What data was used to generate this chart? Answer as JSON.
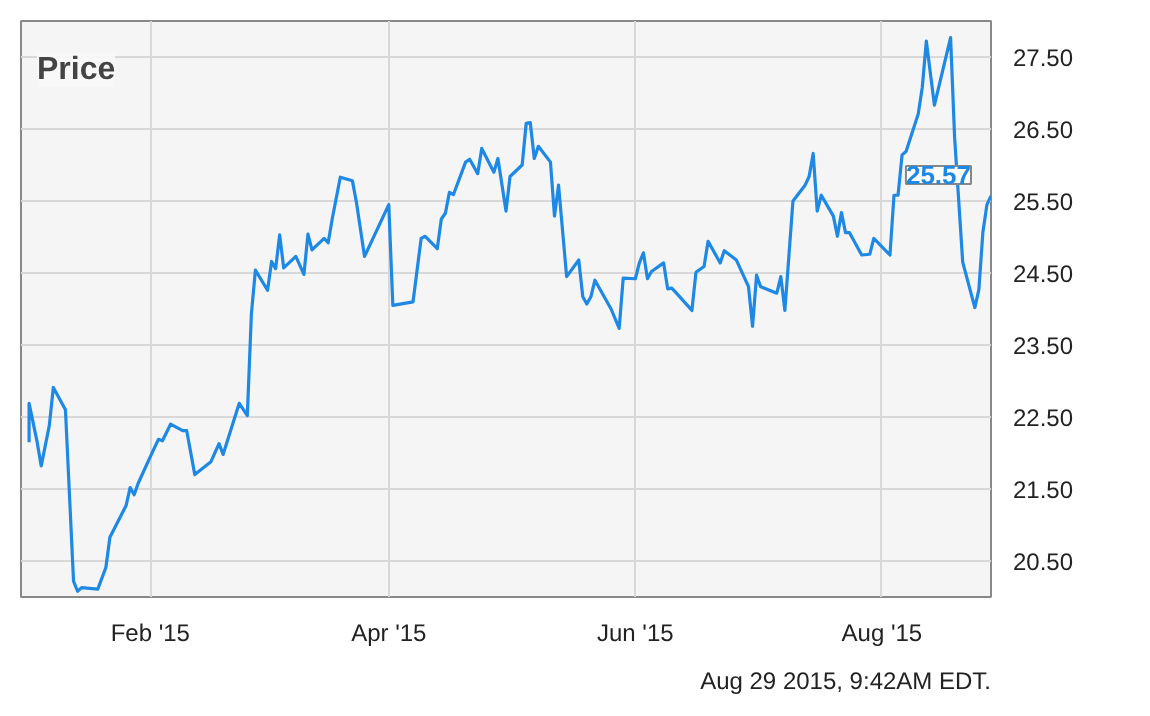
{
  "chart_data": {
    "type": "line",
    "title": "Price",
    "x": [
      "2015-01-02",
      "2015-01-02",
      "2015-01-04",
      "2015-01-05",
      "2015-01-07",
      "2015-01-08",
      "2015-01-11",
      "2015-01-13",
      "2015-01-14",
      "2015-01-15",
      "2015-01-19",
      "2015-01-21",
      "2015-01-22",
      "2015-01-26",
      "2015-01-27",
      "2015-01-28",
      "2015-01-29",
      "2015-02-01",
      "2015-02-03",
      "2015-02-04",
      "2015-02-06",
      "2015-02-09",
      "2015-02-10",
      "2015-02-12",
      "2015-02-16",
      "2015-02-18",
      "2015-02-19",
      "2015-02-23",
      "2015-02-25",
      "2015-02-26",
      "2015-02-27",
      "2015-03-02",
      "2015-03-03",
      "2015-03-04",
      "2015-03-05",
      "2015-03-06",
      "2015-03-09",
      "2015-03-11",
      "2015-03-12",
      "2015-03-13",
      "2015-03-16",
      "2015-03-17",
      "2015-03-18",
      "2015-03-20",
      "2015-03-23",
      "2015-03-24",
      "2015-03-26",
      "2015-04-01",
      "2015-04-02",
      "2015-04-07",
      "2015-04-09",
      "2015-04-10",
      "2015-04-13",
      "2015-04-14",
      "2015-04-15",
      "2015-04-16",
      "2015-04-17",
      "2015-04-20",
      "2015-04-21",
      "2015-04-23",
      "2015-04-24",
      "2015-04-27",
      "2015-04-28",
      "2015-04-30",
      "2015-05-01",
      "2015-05-04",
      "2015-05-05",
      "2015-05-06",
      "2015-05-07",
      "2015-05-08",
      "2015-05-11",
      "2015-05-12",
      "2015-05-13",
      "2015-05-15",
      "2015-05-18",
      "2015-05-19",
      "2015-05-20",
      "2015-05-21",
      "2015-05-22",
      "2015-05-26",
      "2015-05-28",
      "2015-05-29",
      "2015-06-01",
      "2015-06-02",
      "2015-06-03",
      "2015-06-04",
      "2015-06-05",
      "2015-06-08",
      "2015-06-09",
      "2015-06-10",
      "2015-06-11",
      "2015-06-15",
      "2015-06-16",
      "2015-06-18",
      "2015-06-19",
      "2015-06-22",
      "2015-06-23",
      "2015-06-26",
      "2015-06-29",
      "2015-06-30",
      "2015-07-01",
      "2015-07-02",
      "2015-07-06",
      "2015-07-07",
      "2015-07-08",
      "2015-07-10",
      "2015-07-13",
      "2015-07-14",
      "2015-07-15",
      "2015-07-16",
      "2015-07-17",
      "2015-07-20",
      "2015-07-21",
      "2015-07-22",
      "2015-07-23",
      "2015-07-24",
      "2015-07-27",
      "2015-07-29",
      "2015-07-30",
      "2015-08-03",
      "2015-08-04",
      "2015-08-05",
      "2015-08-06",
      "2015-08-07",
      "2015-08-10",
      "2015-08-11",
      "2015-08-12",
      "2015-08-14",
      "2015-08-18",
      "2015-08-19",
      "2015-08-21",
      "2015-08-24",
      "2015-08-25",
      "2015-08-26",
      "2015-08-27",
      "2015-08-28"
    ],
    "series": [
      {
        "color": "#1e88e5",
        "values": [
          22.15,
          22.69,
          22.15,
          21.82,
          22.38,
          22.91,
          22.6,
          20.22,
          20.08,
          20.13,
          20.11,
          20.41,
          20.83,
          21.27,
          21.52,
          21.42,
          21.58,
          21.95,
          22.19,
          22.17,
          22.4,
          22.31,
          22.31,
          21.7,
          21.88,
          22.13,
          21.98,
          22.69,
          22.52,
          23.93,
          24.54,
          24.26,
          24.66,
          24.56,
          25.03,
          24.57,
          24.73,
          24.48,
          25.04,
          24.82,
          24.98,
          24.92,
          25.25,
          25.83,
          25.78,
          25.48,
          24.73,
          25.45,
          24.05,
          24.1,
          24.98,
          25.01,
          24.84,
          25.25,
          25.33,
          25.62,
          25.59,
          26.04,
          26.08,
          25.88,
          26.23,
          25.9,
          26.09,
          25.36,
          25.84,
          26.0,
          26.58,
          26.59,
          26.09,
          26.26,
          26.04,
          25.29,
          25.72,
          24.45,
          24.68,
          24.17,
          24.07,
          24.17,
          24.4,
          24.0,
          23.73,
          24.43,
          24.42,
          24.64,
          24.78,
          24.42,
          24.52,
          24.64,
          24.28,
          24.29,
          24.23,
          23.98,
          24.51,
          24.59,
          24.94,
          24.64,
          24.81,
          24.68,
          24.31,
          23.76,
          24.47,
          24.31,
          24.22,
          24.45,
          23.98,
          25.5,
          25.72,
          25.84,
          26.16,
          25.36,
          25.58,
          25.29,
          25.01,
          25.34,
          25.06,
          25.06,
          24.75,
          24.76,
          24.98,
          24.75,
          25.58,
          25.58,
          26.14,
          26.19,
          26.71,
          27.08,
          27.72,
          26.83,
          27.77,
          26.38,
          24.65,
          24.02,
          24.27,
          25.07,
          25.45,
          25.57
        ]
      }
    ],
    "xlim": [
      "2014-12-31",
      "2015-08-28"
    ],
    "xticks": [
      {
        "value": "2015-02-01",
        "label": "Feb '15"
      },
      {
        "value": "2015-04-01",
        "label": "Apr '15"
      },
      {
        "value": "2015-06-01",
        "label": "Jun '15"
      },
      {
        "value": "2015-08-01",
        "label": "Aug '15"
      }
    ],
    "ylim": [
      20.0,
      28.0
    ],
    "yticks": [
      {
        "value": 20.5,
        "label": "20.50"
      },
      {
        "value": 21.5,
        "label": "21.50"
      },
      {
        "value": 22.5,
        "label": "22.50"
      },
      {
        "value": 23.5,
        "label": "23.50"
      },
      {
        "value": 24.5,
        "label": "24.50"
      },
      {
        "value": 25.5,
        "label": "25.50"
      },
      {
        "value": 26.5,
        "label": "26.50"
      },
      {
        "value": 27.5,
        "label": "27.50"
      }
    ],
    "grid": true,
    "annotations": [
      {
        "text": "25.57",
        "x": "2015-08-28",
        "y": 25.57
      },
      "Aug 29 2015, 9:42AM EDT."
    ]
  }
}
